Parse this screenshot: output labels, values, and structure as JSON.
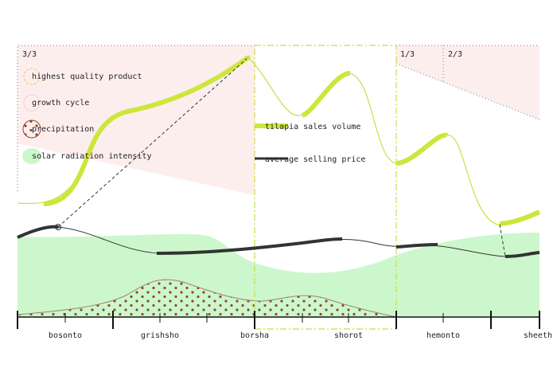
{
  "fractions": [
    "3/3",
    "1/3",
    "2/3"
  ],
  "legend_left": [
    "highest quality product",
    "growth cycle",
    "precipitation",
    "solar radiation intensity"
  ],
  "legend_right": [
    "tilapia sales volume",
    "average selling price"
  ],
  "seasons": [
    "bosonto",
    "grishsho",
    "borsha",
    "shorot",
    "hemonto",
    "sheeth"
  ]
}
